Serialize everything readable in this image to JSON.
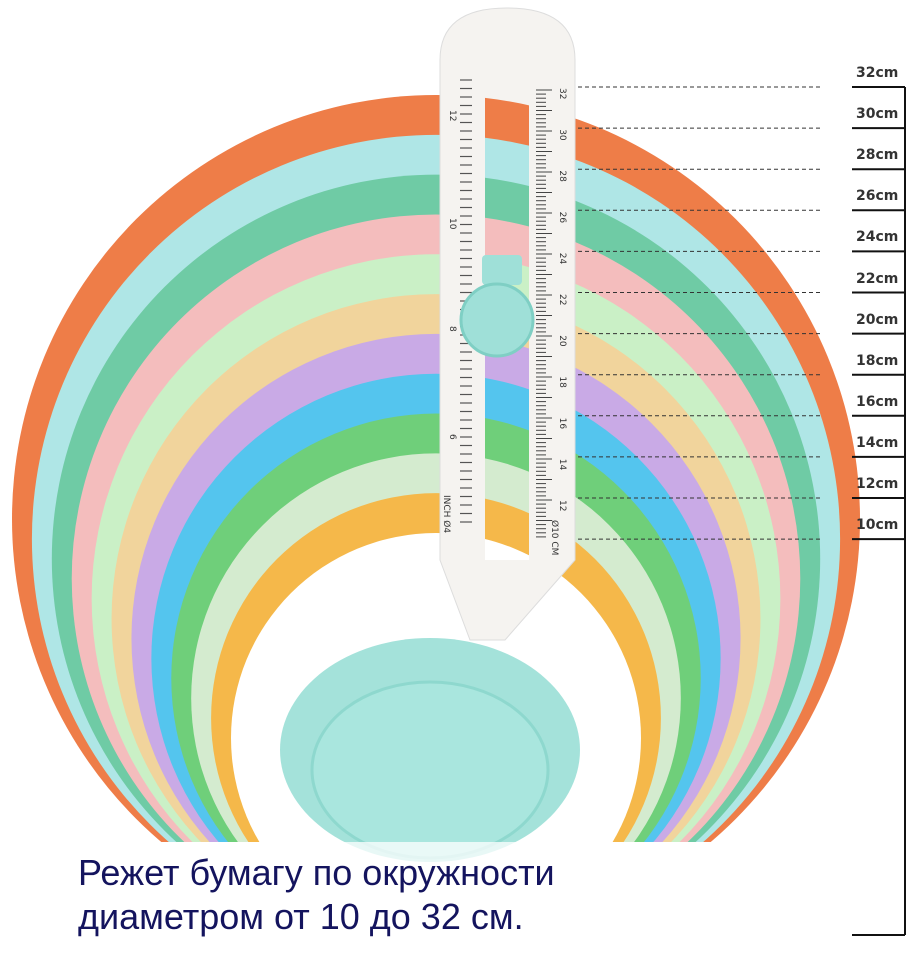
{
  "sizes": [
    "32cm",
    "30cm",
    "28cm",
    "26cm",
    "24cm",
    "22cm",
    "20cm",
    "18cm",
    "16cm",
    "14cm",
    "12cm",
    "10cm"
  ],
  "ruler": {
    "inch_marks": [
      "12",
      "10",
      "8",
      "6"
    ],
    "inch_label": "INCH Ø4",
    "cm_marks": [
      "32",
      "30",
      "28",
      "26",
      "24",
      "22",
      "20",
      "18",
      "16",
      "14",
      "12"
    ],
    "cm_label": "Ø10 CM"
  },
  "circle_colors": [
    "#ee7d48",
    "#afe6e6",
    "#6fcba5",
    "#f4bdbd",
    "#caf0c6",
    "#f1d49c",
    "#c9aae6",
    "#54c5ee",
    "#6fcf7a",
    "#d4ebcf",
    "#f5b84a",
    "#ffffff"
  ],
  "tool_color": "#9fe0d8",
  "caption": {
    "line1": "Режет бумагу по окружности",
    "line2": "диаметром от 10 до 32 см."
  }
}
